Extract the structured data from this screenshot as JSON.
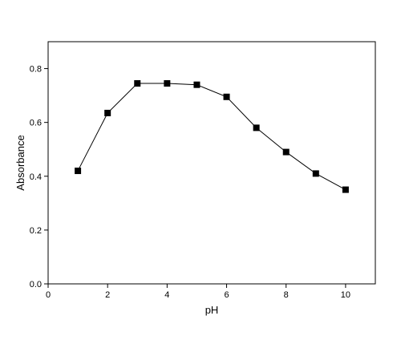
{
  "chart_data": {
    "type": "line",
    "title": "",
    "xlabel": "pH",
    "ylabel": "Absorbance",
    "xlim": [
      0,
      11
    ],
    "ylim": [
      0.0,
      0.9
    ],
    "x_ticks": [
      0,
      2,
      4,
      6,
      8,
      10
    ],
    "x_tick_labels": [
      "0",
      "2",
      "4",
      "6",
      "8",
      "10"
    ],
    "y_ticks": [
      0.0,
      0.2,
      0.4,
      0.6,
      0.8
    ],
    "y_tick_labels": [
      "0.0",
      "0.2",
      "0.4",
      "0.6",
      "0.8"
    ],
    "grid": false,
    "series": [
      {
        "marker": "square",
        "color": "#000000",
        "x": [
          1,
          2,
          3,
          4,
          5,
          6,
          7,
          8,
          9,
          10
        ],
        "y": [
          0.42,
          0.635,
          0.745,
          0.745,
          0.74,
          0.695,
          0.58,
          0.49,
          0.41,
          0.35
        ]
      }
    ]
  }
}
